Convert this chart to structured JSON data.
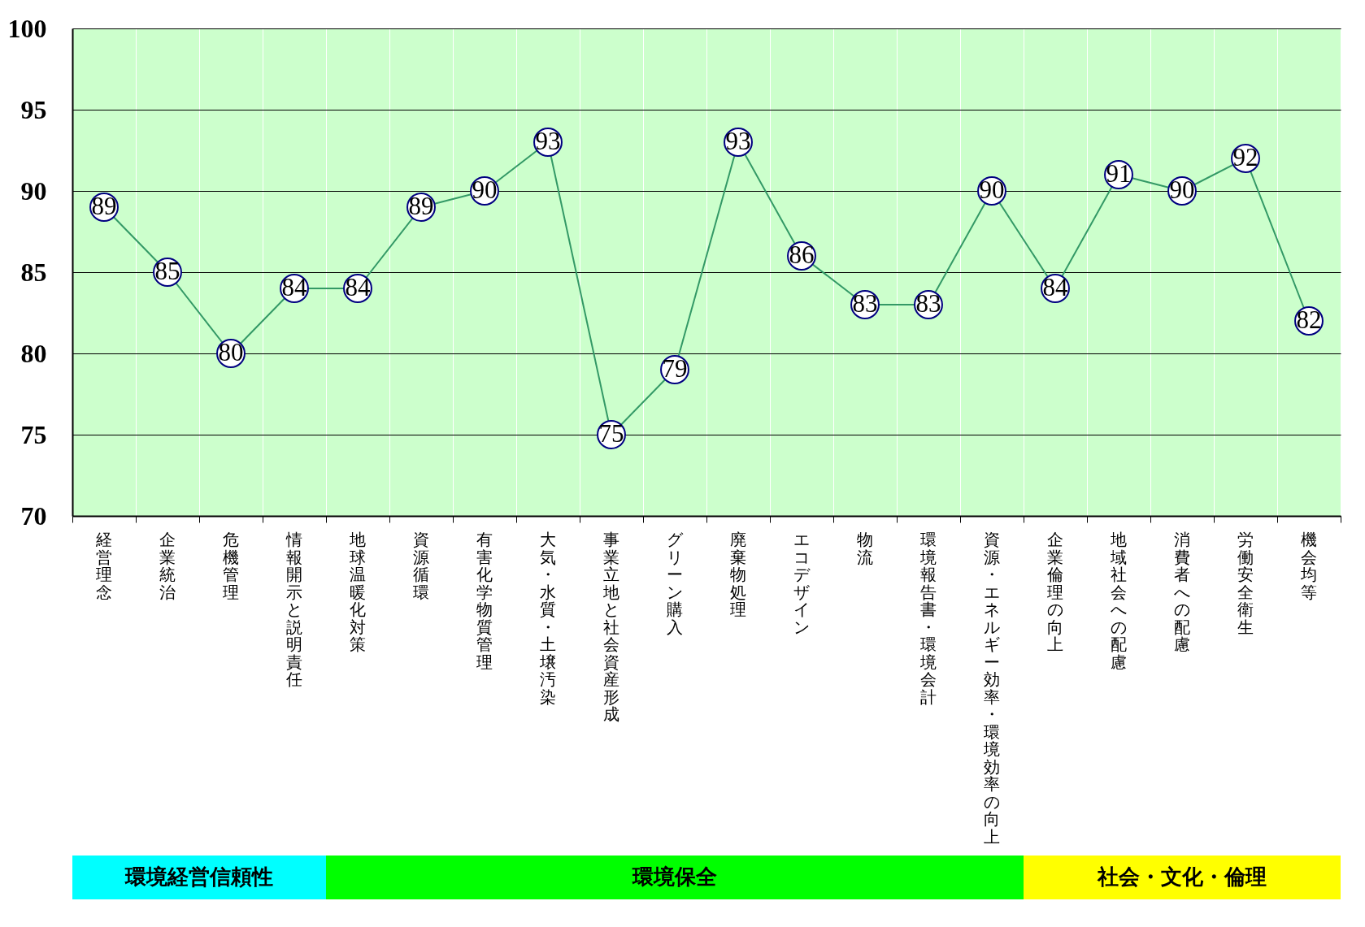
{
  "chart_data": {
    "type": "line",
    "categories": [
      "経営理念",
      "企業統治",
      "危機管理",
      "情報開示と説明責任",
      "地球温暖化対策",
      "資源循環",
      "有害化学物質管理",
      "大気・水質・土壌汚染",
      "事業立地と社会資産形成",
      "グリーン購入",
      "廃棄物処理",
      "エコデザイン",
      "物流",
      "環境報告書・環境会計",
      "資源・エネルギー効率・環境効率の向上",
      "企業倫理の向上",
      "地域社会への配慮",
      "消費者への配慮",
      "労働安全衛生",
      "機会均等"
    ],
    "values": [
      89,
      85,
      80,
      84,
      84,
      89,
      90,
      93,
      75,
      79,
      93,
      86,
      83,
      83,
      90,
      84,
      91,
      90,
      92,
      82
    ],
    "color": "#339966",
    "marker": "circle",
    "data_labels": true,
    "grid": true,
    "ylim": [
      70,
      100
    ],
    "yticks": [
      70,
      75,
      80,
      85,
      90,
      95,
      100
    ],
    "annotations": [
      "環境経営信頼性",
      "環境保全",
      "社会・文化・倫理"
    ]
  }
}
